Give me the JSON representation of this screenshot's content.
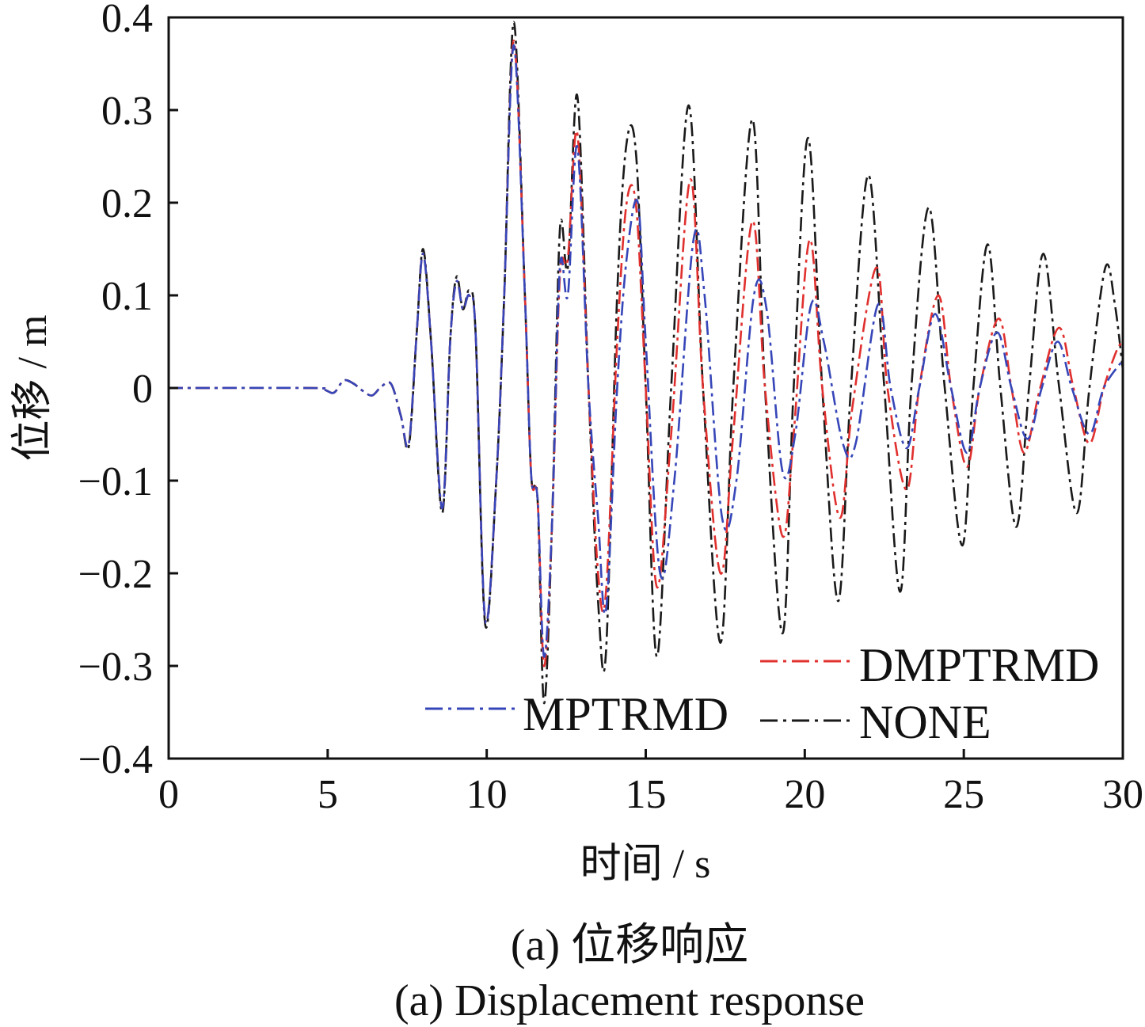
{
  "chart_data": {
    "type": "line",
    "xlabel": "时间 / s",
    "ylabel": "位移 / m",
    "xlim": [
      0,
      30
    ],
    "ylim": [
      -0.4,
      0.4
    ],
    "x_ticks": [
      "0",
      "5",
      "10",
      "15",
      "20",
      "25",
      "30"
    ],
    "y_ticks": [
      "0.4",
      "0.3",
      "0.2",
      "0.1",
      "0",
      "−0.1",
      "−0.2",
      "−0.3",
      "−0.4"
    ],
    "grid": false,
    "legend_position": "bottom-right",
    "series": [
      {
        "name": "NONE",
        "color": "#1a1a1a",
        "dash": "dash-dot",
        "points": [
          [
            0,
            0
          ],
          [
            4.5,
            0
          ],
          [
            4.9,
            -0.002
          ],
          [
            5.2,
            -0.005
          ],
          [
            5.5,
            0.008
          ],
          [
            5.8,
            0.005
          ],
          [
            6.1,
            -0.003
          ],
          [
            6.4,
            -0.008
          ],
          [
            6.7,
            0.002
          ],
          [
            7.0,
            0.004
          ],
          [
            7.3,
            -0.03
          ],
          [
            7.55,
            -0.063
          ],
          [
            7.8,
            0.06
          ],
          [
            8.0,
            0.15
          ],
          [
            8.25,
            0.05
          ],
          [
            8.6,
            -0.135
          ],
          [
            8.85,
            0.05
          ],
          [
            9.05,
            0.12
          ],
          [
            9.25,
            0.085
          ],
          [
            9.45,
            0.105
          ],
          [
            9.65,
            0.06
          ],
          [
            9.95,
            -0.255
          ],
          [
            10.3,
            -0.1
          ],
          [
            10.55,
            0.1
          ],
          [
            10.85,
            0.395
          ],
          [
            11.2,
            0.1
          ],
          [
            11.4,
            -0.095
          ],
          [
            11.6,
            -0.12
          ],
          [
            11.8,
            -0.34
          ],
          [
            12.05,
            -0.15
          ],
          [
            12.3,
            0.17
          ],
          [
            12.55,
            0.13
          ],
          [
            12.85,
            0.315
          ],
          [
            13.2,
            0.0
          ],
          [
            13.5,
            -0.23
          ],
          [
            13.75,
            -0.285
          ],
          [
            14.1,
            0.1
          ],
          [
            14.4,
            0.265
          ],
          [
            14.7,
            0.25
          ],
          [
            15.0,
            0.0
          ],
          [
            15.35,
            -0.29
          ],
          [
            15.8,
            0.0
          ],
          [
            16.35,
            0.305
          ],
          [
            16.8,
            0.0
          ],
          [
            17.35,
            -0.275
          ],
          [
            17.75,
            0.0
          ],
          [
            18.35,
            0.29
          ],
          [
            18.75,
            0.0
          ],
          [
            19.3,
            -0.265
          ],
          [
            19.65,
            0.0
          ],
          [
            20.1,
            0.27
          ],
          [
            20.55,
            0.0
          ],
          [
            21.05,
            -0.23
          ],
          [
            21.45,
            0.0
          ],
          [
            22.0,
            0.23
          ],
          [
            22.5,
            0.0
          ],
          [
            23.0,
            -0.22
          ],
          [
            23.35,
            0.0
          ],
          [
            23.9,
            0.195
          ],
          [
            24.4,
            0.0
          ],
          [
            24.95,
            -0.17
          ],
          [
            25.3,
            0.0
          ],
          [
            25.75,
            0.155
          ],
          [
            26.15,
            0.0
          ],
          [
            26.65,
            -0.15
          ],
          [
            27.05,
            0.0
          ],
          [
            27.5,
            0.145
          ],
          [
            28.0,
            0.0
          ],
          [
            28.55,
            -0.135
          ],
          [
            28.95,
            0.0
          ],
          [
            29.45,
            0.13
          ],
          [
            29.75,
            0.09
          ],
          [
            30.0,
            0.02
          ]
        ]
      },
      {
        "name": "DMPTRMD",
        "color": "#e0302e",
        "dash": "dash-dot",
        "points": [
          [
            0,
            0
          ],
          [
            4.5,
            0
          ],
          [
            4.9,
            -0.002
          ],
          [
            5.2,
            -0.005
          ],
          [
            5.5,
            0.008
          ],
          [
            5.8,
            0.005
          ],
          [
            6.1,
            -0.003
          ],
          [
            6.4,
            -0.008
          ],
          [
            6.7,
            0.002
          ],
          [
            7.0,
            0.004
          ],
          [
            7.3,
            -0.03
          ],
          [
            7.55,
            -0.06
          ],
          [
            7.8,
            0.06
          ],
          [
            8.0,
            0.145
          ],
          [
            8.25,
            0.05
          ],
          [
            8.6,
            -0.13
          ],
          [
            8.85,
            0.05
          ],
          [
            9.05,
            0.115
          ],
          [
            9.25,
            0.085
          ],
          [
            9.45,
            0.1
          ],
          [
            9.65,
            0.06
          ],
          [
            9.95,
            -0.25
          ],
          [
            10.3,
            -0.1
          ],
          [
            10.55,
            0.1
          ],
          [
            10.85,
            0.375
          ],
          [
            11.2,
            0.1
          ],
          [
            11.4,
            -0.095
          ],
          [
            11.6,
            -0.12
          ],
          [
            11.8,
            -0.3
          ],
          [
            12.05,
            -0.15
          ],
          [
            12.3,
            0.12
          ],
          [
            12.55,
            0.14
          ],
          [
            12.85,
            0.275
          ],
          [
            13.2,
            0.0
          ],
          [
            13.5,
            -0.2
          ],
          [
            13.75,
            -0.22
          ],
          [
            14.1,
            0.05
          ],
          [
            14.4,
            0.2
          ],
          [
            14.7,
            0.195
          ],
          [
            15.0,
            0.0
          ],
          [
            15.35,
            -0.215
          ],
          [
            15.8,
            -0.05
          ],
          [
            16.4,
            0.225
          ],
          [
            16.8,
            0.0
          ],
          [
            17.35,
            -0.2
          ],
          [
            17.75,
            -0.05
          ],
          [
            18.35,
            0.18
          ],
          [
            18.75,
            0.0
          ],
          [
            19.3,
            -0.16
          ],
          [
            19.65,
            -0.05
          ],
          [
            20.15,
            0.16
          ],
          [
            20.55,
            0.0
          ],
          [
            21.1,
            -0.14
          ],
          [
            21.5,
            -0.02
          ],
          [
            22.25,
            0.13
          ],
          [
            22.6,
            0.0
          ],
          [
            23.2,
            -0.11
          ],
          [
            23.6,
            0.0
          ],
          [
            24.2,
            0.1
          ],
          [
            24.6,
            0.0
          ],
          [
            25.1,
            -0.085
          ],
          [
            25.5,
            0.0
          ],
          [
            26.1,
            0.075
          ],
          [
            26.5,
            0.0
          ],
          [
            26.9,
            -0.07
          ],
          [
            27.4,
            0.0
          ],
          [
            28.0,
            0.065
          ],
          [
            28.45,
            0.0
          ],
          [
            28.95,
            -0.06
          ],
          [
            29.4,
            0.0
          ],
          [
            29.8,
            0.04
          ],
          [
            30.0,
            0.05
          ]
        ]
      },
      {
        "name": "MPTRMD",
        "color": "#3646b8",
        "dash": "dash-dot",
        "points": [
          [
            0,
            0
          ],
          [
            4.5,
            0
          ],
          [
            4.9,
            -0.002
          ],
          [
            5.2,
            -0.005
          ],
          [
            5.5,
            0.008
          ],
          [
            5.8,
            0.005
          ],
          [
            6.1,
            -0.003
          ],
          [
            6.4,
            -0.008
          ],
          [
            6.7,
            0.002
          ],
          [
            7.0,
            0.004
          ],
          [
            7.3,
            -0.03
          ],
          [
            7.55,
            -0.06
          ],
          [
            7.8,
            0.06
          ],
          [
            8.0,
            0.145
          ],
          [
            8.25,
            0.05
          ],
          [
            8.6,
            -0.13
          ],
          [
            8.85,
            0.05
          ],
          [
            9.05,
            0.115
          ],
          [
            9.25,
            0.085
          ],
          [
            9.45,
            0.1
          ],
          [
            9.65,
            0.06
          ],
          [
            9.95,
            -0.25
          ],
          [
            10.3,
            -0.1
          ],
          [
            10.55,
            0.1
          ],
          [
            10.85,
            0.37
          ],
          [
            11.2,
            0.1
          ],
          [
            11.4,
            -0.095
          ],
          [
            11.6,
            -0.12
          ],
          [
            11.8,
            -0.29
          ],
          [
            12.05,
            -0.15
          ],
          [
            12.3,
            0.13
          ],
          [
            12.55,
            0.1
          ],
          [
            12.85,
            0.26
          ],
          [
            13.2,
            0.0
          ],
          [
            13.5,
            -0.14
          ],
          [
            13.75,
            -0.24
          ],
          [
            14.1,
            0.0
          ],
          [
            14.4,
            0.14
          ],
          [
            14.75,
            0.2
          ],
          [
            15.0,
            0.05
          ],
          [
            15.45,
            -0.2
          ],
          [
            15.9,
            -0.1
          ],
          [
            16.5,
            0.16
          ],
          [
            16.85,
            0.1
          ],
          [
            17.4,
            -0.14
          ],
          [
            17.85,
            -0.1
          ],
          [
            18.4,
            0.1
          ],
          [
            18.8,
            0.085
          ],
          [
            19.3,
            -0.09
          ],
          [
            19.7,
            -0.05
          ],
          [
            20.2,
            0.09
          ],
          [
            20.6,
            0.05
          ],
          [
            21.2,
            -0.06
          ],
          [
            21.6,
            -0.06
          ],
          [
            22.3,
            0.09
          ],
          [
            22.7,
            0.0
          ],
          [
            23.2,
            -0.065
          ],
          [
            23.6,
            0.0
          ],
          [
            24.1,
            0.08
          ],
          [
            24.6,
            0.0
          ],
          [
            25.1,
            -0.07
          ],
          [
            25.5,
            0.0
          ],
          [
            26.05,
            0.06
          ],
          [
            26.5,
            0.0
          ],
          [
            27.0,
            -0.055
          ],
          [
            27.45,
            0.0
          ],
          [
            27.95,
            0.05
          ],
          [
            28.4,
            0.0
          ],
          [
            28.95,
            -0.05
          ],
          [
            29.4,
            0.0
          ],
          [
            30.0,
            0.03
          ]
        ]
      }
    ],
    "legend": [
      {
        "name": "DMPTRMD",
        "color": "#e0302e"
      },
      {
        "name": "MPTRMD",
        "color": "#3646b8"
      },
      {
        "name": "NONE",
        "color": "#1a1a1a"
      }
    ]
  },
  "captions": {
    "zh": "(a) 位移响应",
    "en": "(a) Displacement response"
  }
}
